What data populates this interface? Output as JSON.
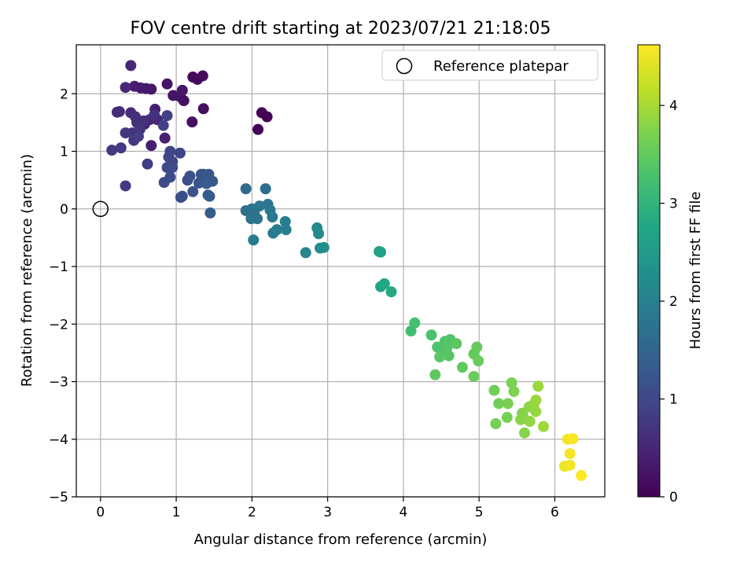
{
  "chart_data": {
    "type": "scatter",
    "title": "FOV centre drift starting at 2023/07/21 21:18:05",
    "xlabel": "Angular distance from reference (arcmin)",
    "ylabel": "Rotation from reference (arcmin)",
    "xlim": [
      -0.32,
      6.66
    ],
    "ylim": [
      -5.0,
      2.85
    ],
    "xticks": [
      0,
      1,
      2,
      3,
      4,
      5,
      6
    ],
    "yticks": [
      -5,
      -4,
      -3,
      -2,
      -1,
      0,
      1,
      2
    ],
    "xtick_labels": [
      "0",
      "1",
      "2",
      "3",
      "4",
      "5",
      "6"
    ],
    "ytick_labels": [
      "−5",
      "−4",
      "−3",
      "−2",
      "−1",
      "0",
      "1",
      "2"
    ],
    "grid": true,
    "legend": {
      "position": "top-right",
      "entries": [
        "Reference platepar"
      ]
    },
    "reference_point": {
      "x": 0,
      "y": 0
    },
    "colorbar": {
      "label": "Hours from first FF file",
      "colormap": "viridis",
      "range": [
        0,
        4.62
      ],
      "ticks": [
        0,
        1,
        2,
        3,
        4
      ],
      "tick_labels": [
        "0",
        "1",
        "2",
        "3",
        "4"
      ]
    },
    "points": [
      {
        "x": 2.13,
        "y": 1.67,
        "h": 0.02
      },
      {
        "x": 2.2,
        "y": 1.6,
        "h": 0.03
      },
      {
        "x": 2.08,
        "y": 1.38,
        "h": 0.05
      },
      {
        "x": 1.22,
        "y": 2.29,
        "h": 0.1
      },
      {
        "x": 1.28,
        "y": 2.25,
        "h": 0.12
      },
      {
        "x": 1.35,
        "y": 2.31,
        "h": 0.14
      },
      {
        "x": 1.36,
        "y": 1.74,
        "h": 0.16
      },
      {
        "x": 1.21,
        "y": 1.51,
        "h": 0.18
      },
      {
        "x": 1.1,
        "y": 1.88,
        "h": 0.2
      },
      {
        "x": 1.05,
        "y": 1.95,
        "h": 0.22
      },
      {
        "x": 0.96,
        "y": 1.97,
        "h": 0.24
      },
      {
        "x": 0.88,
        "y": 2.17,
        "h": 0.26
      },
      {
        "x": 1.08,
        "y": 2.06,
        "h": 0.28
      },
      {
        "x": 0.67,
        "y": 2.08,
        "h": 0.3
      },
      {
        "x": 0.6,
        "y": 2.09,
        "h": 0.32
      },
      {
        "x": 0.53,
        "y": 2.1,
        "h": 0.34
      },
      {
        "x": 0.45,
        "y": 2.13,
        "h": 0.36
      },
      {
        "x": 0.72,
        "y": 1.73,
        "h": 0.38
      },
      {
        "x": 0.67,
        "y": 1.1,
        "h": 0.4
      },
      {
        "x": 0.85,
        "y": 1.23,
        "h": 0.42
      },
      {
        "x": 0.58,
        "y": 1.47,
        "h": 0.44
      },
      {
        "x": 0.65,
        "y": 1.55,
        "h": 0.46
      },
      {
        "x": 0.75,
        "y": 1.55,
        "h": 0.48
      },
      {
        "x": 0.4,
        "y": 2.49,
        "h": 0.5
      },
      {
        "x": 0.33,
        "y": 2.11,
        "h": 0.52
      },
      {
        "x": 0.22,
        "y": 1.68,
        "h": 0.54
      },
      {
        "x": 0.25,
        "y": 1.69,
        "h": 0.56
      },
      {
        "x": 0.4,
        "y": 1.67,
        "h": 0.58
      },
      {
        "x": 0.46,
        "y": 1.6,
        "h": 0.6
      },
      {
        "x": 0.48,
        "y": 1.5,
        "h": 0.62
      },
      {
        "x": 0.57,
        "y": 1.53,
        "h": 0.64
      },
      {
        "x": 0.71,
        "y": 1.63,
        "h": 0.66
      },
      {
        "x": 0.42,
        "y": 1.32,
        "h": 0.68
      },
      {
        "x": 0.52,
        "y": 1.38,
        "h": 0.7
      },
      {
        "x": 0.33,
        "y": 1.32,
        "h": 0.72
      },
      {
        "x": 0.44,
        "y": 1.19,
        "h": 0.74
      },
      {
        "x": 0.27,
        "y": 1.06,
        "h": 0.76
      },
      {
        "x": 0.15,
        "y": 1.02,
        "h": 0.78
      },
      {
        "x": 0.33,
        "y": 0.4,
        "h": 0.8
      },
      {
        "x": 0.5,
        "y": 1.26,
        "h": 0.82
      },
      {
        "x": 0.62,
        "y": 0.78,
        "h": 0.84
      },
      {
        "x": 0.88,
        "y": 1.62,
        "h": 0.86
      },
      {
        "x": 0.83,
        "y": 1.45,
        "h": 0.88
      },
      {
        "x": 1.05,
        "y": 0.97,
        "h": 0.92
      },
      {
        "x": 0.92,
        "y": 1.0,
        "h": 0.94
      },
      {
        "x": 0.9,
        "y": 0.9,
        "h": 0.96
      },
      {
        "x": 0.95,
        "y": 0.82,
        "h": 0.98
      },
      {
        "x": 0.88,
        "y": 0.72,
        "h": 1.0
      },
      {
        "x": 0.95,
        "y": 0.72,
        "h": 1.02
      },
      {
        "x": 0.92,
        "y": 0.55,
        "h": 1.04
      },
      {
        "x": 0.84,
        "y": 0.46,
        "h": 1.06
      },
      {
        "x": 1.06,
        "y": 0.2,
        "h": 1.08
      },
      {
        "x": 1.08,
        "y": 0.22,
        "h": 1.1
      },
      {
        "x": 1.15,
        "y": 0.5,
        "h": 1.12
      },
      {
        "x": 1.18,
        "y": 0.57,
        "h": 1.14
      },
      {
        "x": 1.22,
        "y": 0.3,
        "h": 1.16
      },
      {
        "x": 1.3,
        "y": 0.45,
        "h": 1.18
      },
      {
        "x": 1.35,
        "y": 0.5,
        "h": 1.2
      },
      {
        "x": 1.33,
        "y": 0.6,
        "h": 1.22
      },
      {
        "x": 1.36,
        "y": 0.6,
        "h": 1.24
      },
      {
        "x": 1.43,
        "y": 0.6,
        "h": 1.26
      },
      {
        "x": 1.48,
        "y": 0.48,
        "h": 1.28
      },
      {
        "x": 1.42,
        "y": 0.24,
        "h": 1.3
      },
      {
        "x": 1.44,
        "y": 0.22,
        "h": 1.32
      },
      {
        "x": 1.45,
        "y": -0.07,
        "h": 1.34
      },
      {
        "x": 1.4,
        "y": 0.44,
        "h": 1.36
      },
      {
        "x": 1.92,
        "y": 0.35,
        "h": 1.6
      },
      {
        "x": 2.18,
        "y": 0.35,
        "h": 1.65
      },
      {
        "x": 1.92,
        "y": -0.03,
        "h": 1.7
      },
      {
        "x": 2.0,
        "y": 0.0,
        "h": 1.72
      },
      {
        "x": 2.03,
        "y": -0.05,
        "h": 1.74
      },
      {
        "x": 1.99,
        "y": -0.17,
        "h": 1.76
      },
      {
        "x": 2.07,
        "y": -0.17,
        "h": 1.78
      },
      {
        "x": 2.1,
        "y": 0.05,
        "h": 1.8
      },
      {
        "x": 2.21,
        "y": 0.08,
        "h": 1.82
      },
      {
        "x": 2.24,
        "y": -0.02,
        "h": 1.84
      },
      {
        "x": 2.27,
        "y": -0.14,
        "h": 1.86
      },
      {
        "x": 2.02,
        "y": -0.54,
        "h": 1.88
      },
      {
        "x": 2.28,
        "y": -0.42,
        "h": 1.9
      },
      {
        "x": 2.33,
        "y": -0.36,
        "h": 1.92
      },
      {
        "x": 2.44,
        "y": -0.22,
        "h": 1.94
      },
      {
        "x": 2.45,
        "y": -0.36,
        "h": 1.96
      },
      {
        "x": 2.71,
        "y": -0.76,
        "h": 2.1
      },
      {
        "x": 2.86,
        "y": -0.33,
        "h": 2.14
      },
      {
        "x": 2.88,
        "y": -0.43,
        "h": 2.18
      },
      {
        "x": 2.9,
        "y": -0.68,
        "h": 2.22
      },
      {
        "x": 2.95,
        "y": -0.67,
        "h": 2.26
      },
      {
        "x": 3.68,
        "y": -0.74,
        "h": 2.6
      },
      {
        "x": 3.7,
        "y": -0.75,
        "h": 2.64
      },
      {
        "x": 3.7,
        "y": -1.35,
        "h": 2.72
      },
      {
        "x": 3.75,
        "y": -1.3,
        "h": 2.76
      },
      {
        "x": 3.84,
        "y": -1.44,
        "h": 2.8
      },
      {
        "x": 4.1,
        "y": -2.12,
        "h": 3.2
      },
      {
        "x": 4.15,
        "y": -1.98,
        "h": 3.24
      },
      {
        "x": 4.37,
        "y": -2.19,
        "h": 3.28
      },
      {
        "x": 4.45,
        "y": -2.4,
        "h": 3.3
      },
      {
        "x": 4.5,
        "y": -2.45,
        "h": 3.32
      },
      {
        "x": 4.55,
        "y": -2.3,
        "h": 3.34
      },
      {
        "x": 4.62,
        "y": -2.27,
        "h": 3.36
      },
      {
        "x": 4.58,
        "y": -2.4,
        "h": 3.38
      },
      {
        "x": 4.6,
        "y": -2.55,
        "h": 3.4
      },
      {
        "x": 4.48,
        "y": -2.57,
        "h": 3.42
      },
      {
        "x": 4.7,
        "y": -2.34,
        "h": 3.44
      },
      {
        "x": 4.42,
        "y": -2.88,
        "h": 3.46
      },
      {
        "x": 4.78,
        "y": -2.75,
        "h": 3.48
      },
      {
        "x": 4.93,
        "y": -2.52,
        "h": 3.5
      },
      {
        "x": 4.97,
        "y": -2.4,
        "h": 3.52
      },
      {
        "x": 4.99,
        "y": -2.64,
        "h": 3.54
      },
      {
        "x": 4.93,
        "y": -2.91,
        "h": 3.56
      },
      {
        "x": 5.2,
        "y": -3.15,
        "h": 3.6
      },
      {
        "x": 5.26,
        "y": -3.38,
        "h": 3.62
      },
      {
        "x": 5.22,
        "y": -3.73,
        "h": 3.64
      },
      {
        "x": 5.37,
        "y": -3.62,
        "h": 3.66
      },
      {
        "x": 5.38,
        "y": -3.38,
        "h": 3.68
      },
      {
        "x": 5.43,
        "y": -3.02,
        "h": 3.7
      },
      {
        "x": 5.46,
        "y": -3.17,
        "h": 3.72
      },
      {
        "x": 5.57,
        "y": -3.55,
        "h": 3.74
      },
      {
        "x": 5.58,
        "y": -3.6,
        "h": 3.76
      },
      {
        "x": 5.6,
        "y": -3.89,
        "h": 3.78
      },
      {
        "x": 5.55,
        "y": -3.66,
        "h": 3.8
      },
      {
        "x": 5.66,
        "y": -3.44,
        "h": 3.82
      },
      {
        "x": 5.67,
        "y": -3.69,
        "h": 3.84
      },
      {
        "x": 5.72,
        "y": -3.4,
        "h": 3.86
      },
      {
        "x": 5.75,
        "y": -3.52,
        "h": 3.88
      },
      {
        "x": 5.75,
        "y": -3.32,
        "h": 3.9
      },
      {
        "x": 5.78,
        "y": -3.08,
        "h": 3.92
      },
      {
        "x": 5.85,
        "y": -3.78,
        "h": 3.94
      },
      {
        "x": 6.13,
        "y": -4.47,
        "h": 4.5
      },
      {
        "x": 6.17,
        "y": -4.0,
        "h": 4.52
      },
      {
        "x": 6.2,
        "y": -4.45,
        "h": 4.54
      },
      {
        "x": 6.2,
        "y": -4.25,
        "h": 4.56
      },
      {
        "x": 6.24,
        "y": -3.99,
        "h": 4.58
      },
      {
        "x": 6.35,
        "y": -4.63,
        "h": 4.6
      }
    ]
  }
}
